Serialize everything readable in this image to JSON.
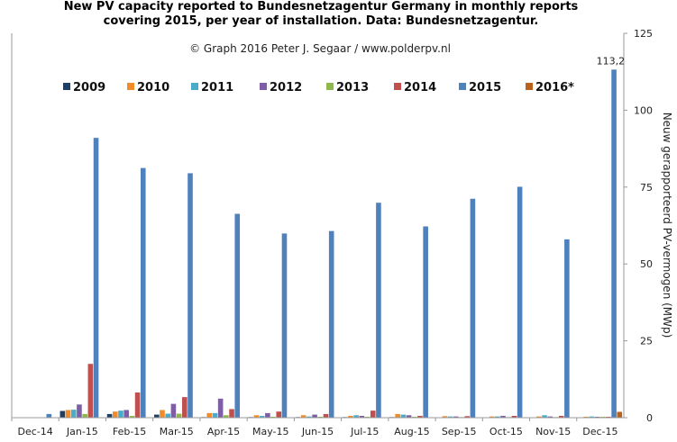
{
  "chart_data": {
    "type": "bar",
    "title_line1": "New PV capacity reported to Bundesnetzagentur Germany in monthly reports",
    "title_line2": "covering 2015, per year of installation. Data: Bundesnetzagentur.",
    "credit": "© Graph 2016 Peter J. Segaar / www.polderpv.nl",
    "ylabel": "Neuw gerapporteerd PV-vermogen (MWp)",
    "ylim": [
      0,
      125
    ],
    "yticks": [
      0,
      25,
      50,
      75,
      100,
      125
    ],
    "y_axis_side": "right",
    "grid": false,
    "legend_placement": "top",
    "categories": [
      "Dec-14",
      "Jan-15",
      "Feb-15",
      "Mar-15",
      "Apr-15",
      "May-15",
      "Jun-15",
      "Jul-15",
      "Aug-15",
      "Sep-15",
      "Oct-15",
      "Nov-15",
      "Dec-15"
    ],
    "series": [
      {
        "name": "2009",
        "color": "#1f3f66",
        "values": [
          0,
          2.2,
          1.2,
          1.0,
          0.2,
          0.2,
          0.2,
          0.2,
          0.2,
          0.1,
          0.1,
          0.1,
          0.1
        ]
      },
      {
        "name": "2010",
        "color": "#f08c2a",
        "values": [
          0,
          2.5,
          2.0,
          2.5,
          1.5,
          0.8,
          0.8,
          0.6,
          1.2,
          0.5,
          0.4,
          0.4,
          0.3
        ]
      },
      {
        "name": "2011",
        "color": "#4aacc6",
        "values": [
          0,
          2.6,
          2.3,
          1.3,
          1.5,
          0.6,
          0.4,
          0.8,
          1.0,
          0.4,
          0.4,
          0.8,
          0.4
        ]
      },
      {
        "name": "2012",
        "color": "#7e5fa5",
        "values": [
          0,
          4.3,
          2.5,
          4.5,
          6.2,
          1.5,
          1.0,
          0.6,
          0.8,
          0.4,
          0.6,
          0.4,
          0.3
        ]
      },
      {
        "name": "2013",
        "color": "#8fb84a",
        "values": [
          0,
          1.2,
          0.6,
          1.3,
          0.8,
          0.3,
          0.3,
          0.3,
          0.3,
          0.2,
          0.2,
          0.2,
          0.3
        ]
      },
      {
        "name": "2014",
        "color": "#c0504d",
        "values": [
          0,
          17.5,
          8.2,
          6.7,
          2.8,
          2.0,
          1.2,
          2.3,
          0.6,
          0.5,
          0.6,
          0.6,
          0.3
        ]
      },
      {
        "name": "2015",
        "color": "#4f81bd",
        "values": [
          1.2,
          91.0,
          81.2,
          79.5,
          66.3,
          59.9,
          60.7,
          69.9,
          62.2,
          71.2,
          75.1,
          58.0,
          113.2
        ]
      },
      {
        "name": "2016*",
        "color": "#b8621b",
        "values": [
          0,
          0,
          0,
          0,
          0,
          0,
          0,
          0,
          0,
          0,
          0,
          0,
          1.9
        ]
      }
    ],
    "annotation": "113,2"
  }
}
